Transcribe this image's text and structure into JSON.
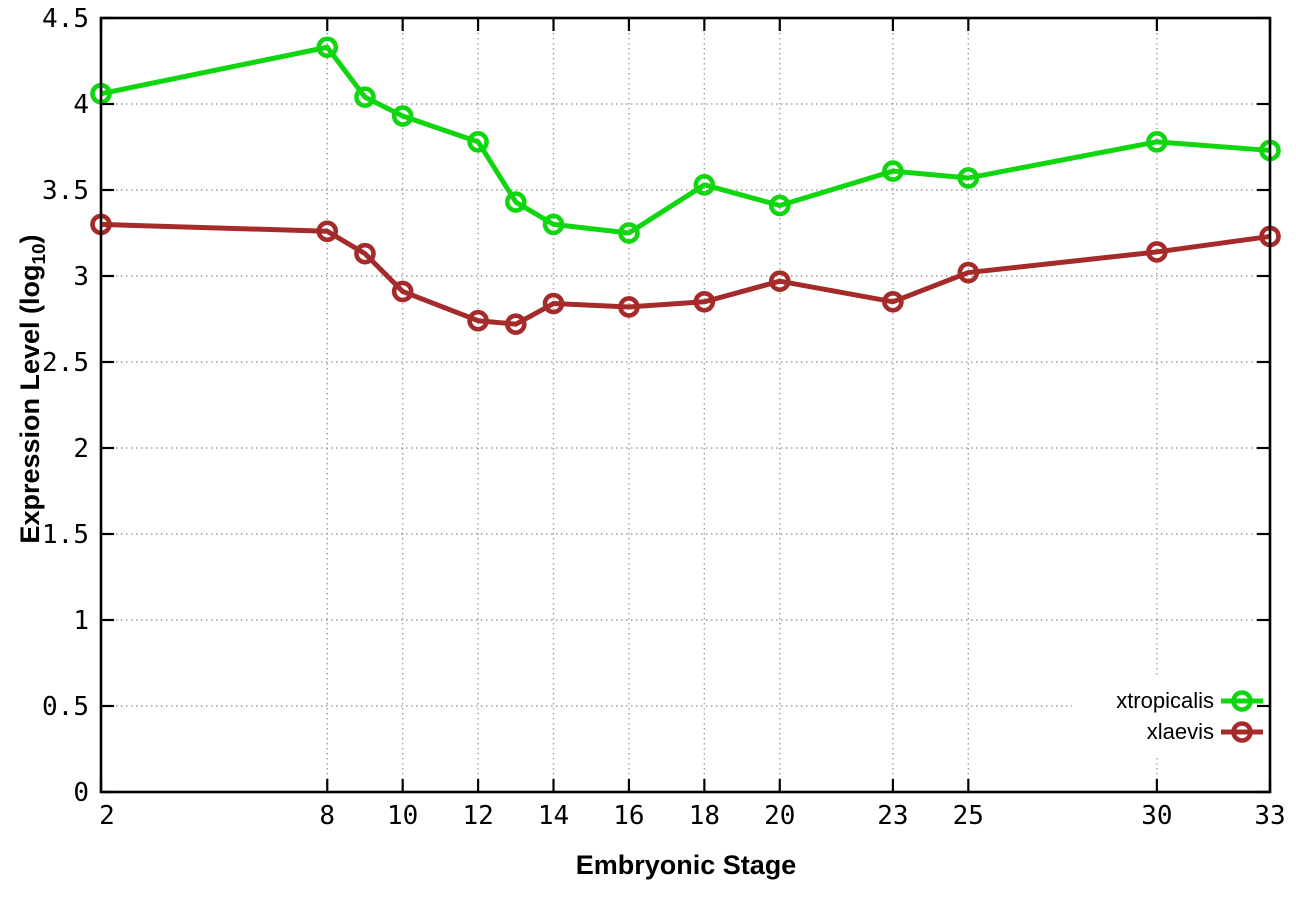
{
  "chart_data": {
    "type": "line",
    "title": "",
    "xlabel": "Embryonic Stage",
    "ylabel": "Expression Level (log10)",
    "ylabel_parts": {
      "main": "Expression Level (log",
      "sub": "10",
      "close": ")"
    },
    "x": [
      2,
      8,
      9,
      10,
      12,
      13,
      14,
      16,
      18,
      20,
      23,
      25,
      30,
      33
    ],
    "xticks": [
      2,
      8,
      10,
      12,
      14,
      16,
      18,
      20,
      23,
      25,
      30,
      33
    ],
    "xtick_labels": [
      "2",
      "8",
      "10",
      "12",
      "14",
      "16",
      "18",
      "20",
      "23",
      "25",
      "30",
      "33"
    ],
    "yticks": [
      0,
      0.5,
      1,
      1.5,
      2,
      2.5,
      3,
      3.5,
      4,
      4.5
    ],
    "ytick_labels": [
      "0",
      "0.5",
      "1",
      "1.5",
      "2",
      "2.5",
      "3",
      "3.5",
      "4",
      "4.5"
    ],
    "xlim": [
      2,
      33
    ],
    "ylim": [
      0,
      4.5
    ],
    "grid": true,
    "legend_position": "bottom-right",
    "marker": "open-circle",
    "series": [
      {
        "name": "xtropicalis",
        "color": "#0fd60f",
        "values": [
          4.06,
          4.33,
          4.04,
          3.93,
          3.78,
          3.43,
          3.3,
          3.25,
          3.53,
          3.41,
          3.61,
          3.57,
          3.78,
          3.73
        ]
      },
      {
        "name": "xlaevis",
        "color": "#a52a2a",
        "values": [
          3.3,
          3.26,
          3.13,
          2.91,
          2.74,
          2.72,
          2.84,
          2.82,
          2.85,
          2.97,
          2.85,
          3.02,
          3.14,
          3.23
        ]
      }
    ],
    "colors": {
      "axis": "#000000",
      "grid": "#9e9e9e",
      "background": "#ffffff",
      "text": "#000000"
    }
  }
}
